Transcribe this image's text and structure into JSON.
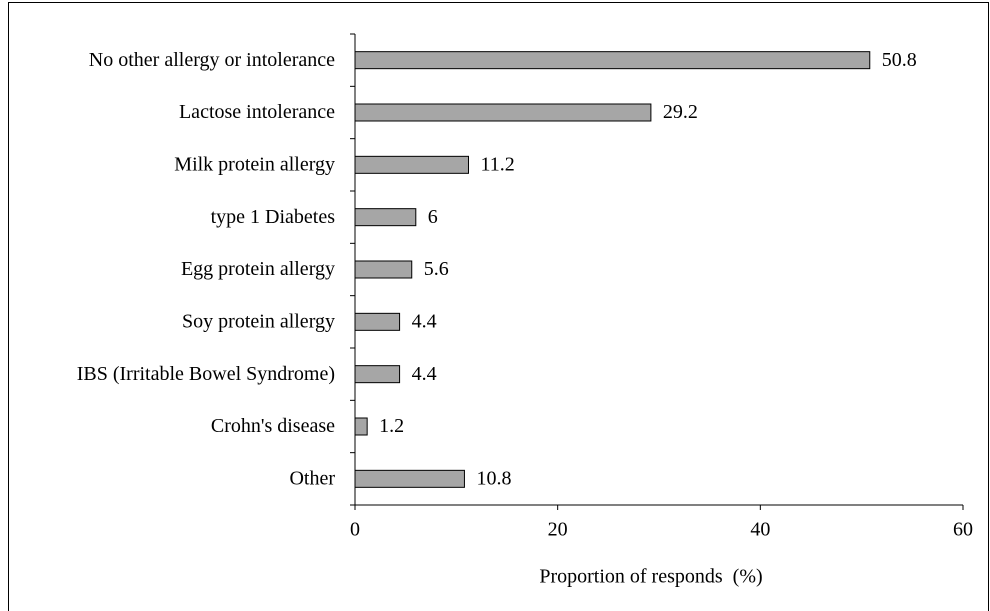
{
  "chart_data": {
    "type": "barh",
    "x_label": "Proportion of responds  (%)",
    "categories": [
      "No other allergy or intolerance",
      "Lactose intolerance",
      "Milk protein allergy",
      "type 1 Diabetes",
      "Egg protein allergy",
      "Soy protein allergy",
      "IBS (Irritable Bowel Syndrome)",
      "Crohn's disease",
      "Other"
    ],
    "values": [
      50.8,
      29.2,
      11.2,
      6,
      5.6,
      4.4,
      4.4,
      1.2,
      10.8
    ],
    "color": "#a6a6a6",
    "xlim": [
      0,
      60
    ],
    "xticks": [
      0,
      20,
      40,
      60
    ],
    "grid": false
  }
}
